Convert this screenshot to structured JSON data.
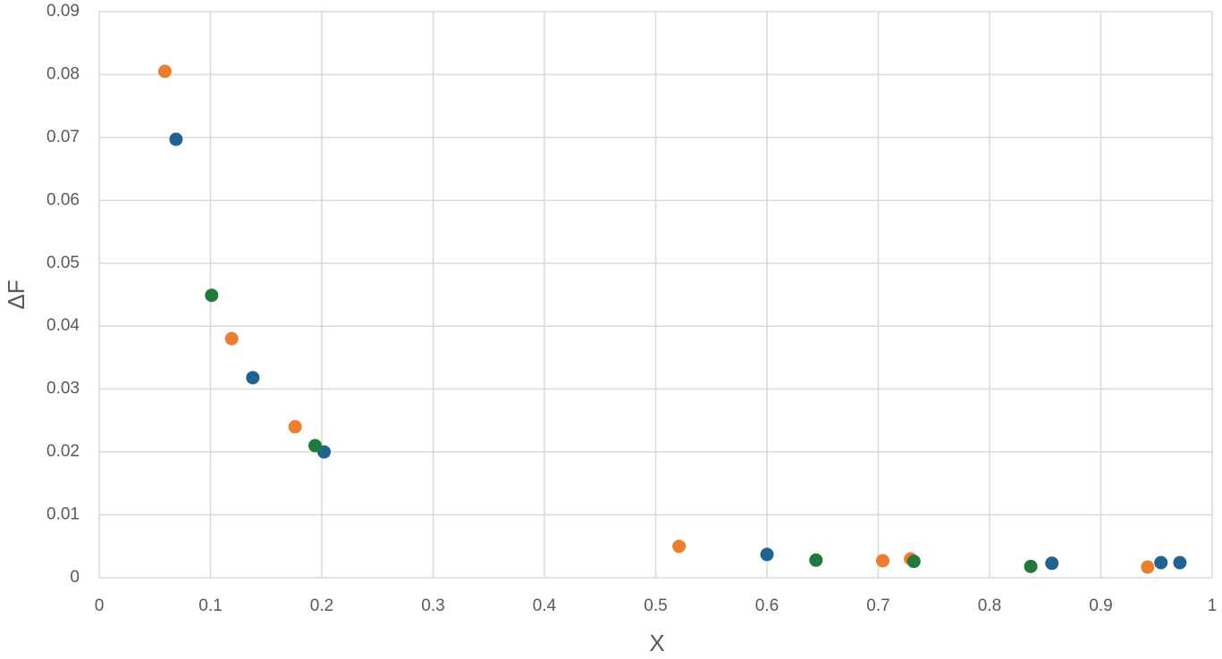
{
  "chart_data": {
    "type": "scatter",
    "x_label": "X",
    "y_label": "ΔF",
    "xlim": [
      0,
      1
    ],
    "xticks": [
      0,
      0.1,
      0.2,
      0.3,
      0.4,
      0.5,
      0.6,
      0.7,
      0.8,
      0.9,
      1
    ],
    "ylim": [
      0,
      0.09
    ],
    "yticks": [
      0,
      0.01,
      0.02,
      0.03,
      0.04,
      0.05,
      0.06,
      0.07,
      0.08,
      0.09
    ],
    "grid": true,
    "series": [
      {
        "color": "#ed7d31",
        "x": [
          0.059,
          0.119,
          0.176,
          0.521,
          0.704,
          0.729,
          0.942
        ],
        "values": [
          0.0805,
          0.038,
          0.024,
          0.005,
          0.0027,
          0.003,
          0.0017
        ]
      },
      {
        "color": "#1f6391",
        "x": [
          0.069,
          0.138,
          0.202,
          0.6,
          0.856,
          0.954,
          0.971
        ],
        "values": [
          0.0697,
          0.0318,
          0.02,
          0.0037,
          0.0023,
          0.0024,
          0.0024
        ]
      },
      {
        "color": "#217a3c",
        "x": [
          0.101,
          0.194,
          0.644,
          0.732,
          0.837
        ],
        "values": [
          0.0449,
          0.021,
          0.0028,
          0.0026,
          0.0018
        ]
      }
    ]
  }
}
